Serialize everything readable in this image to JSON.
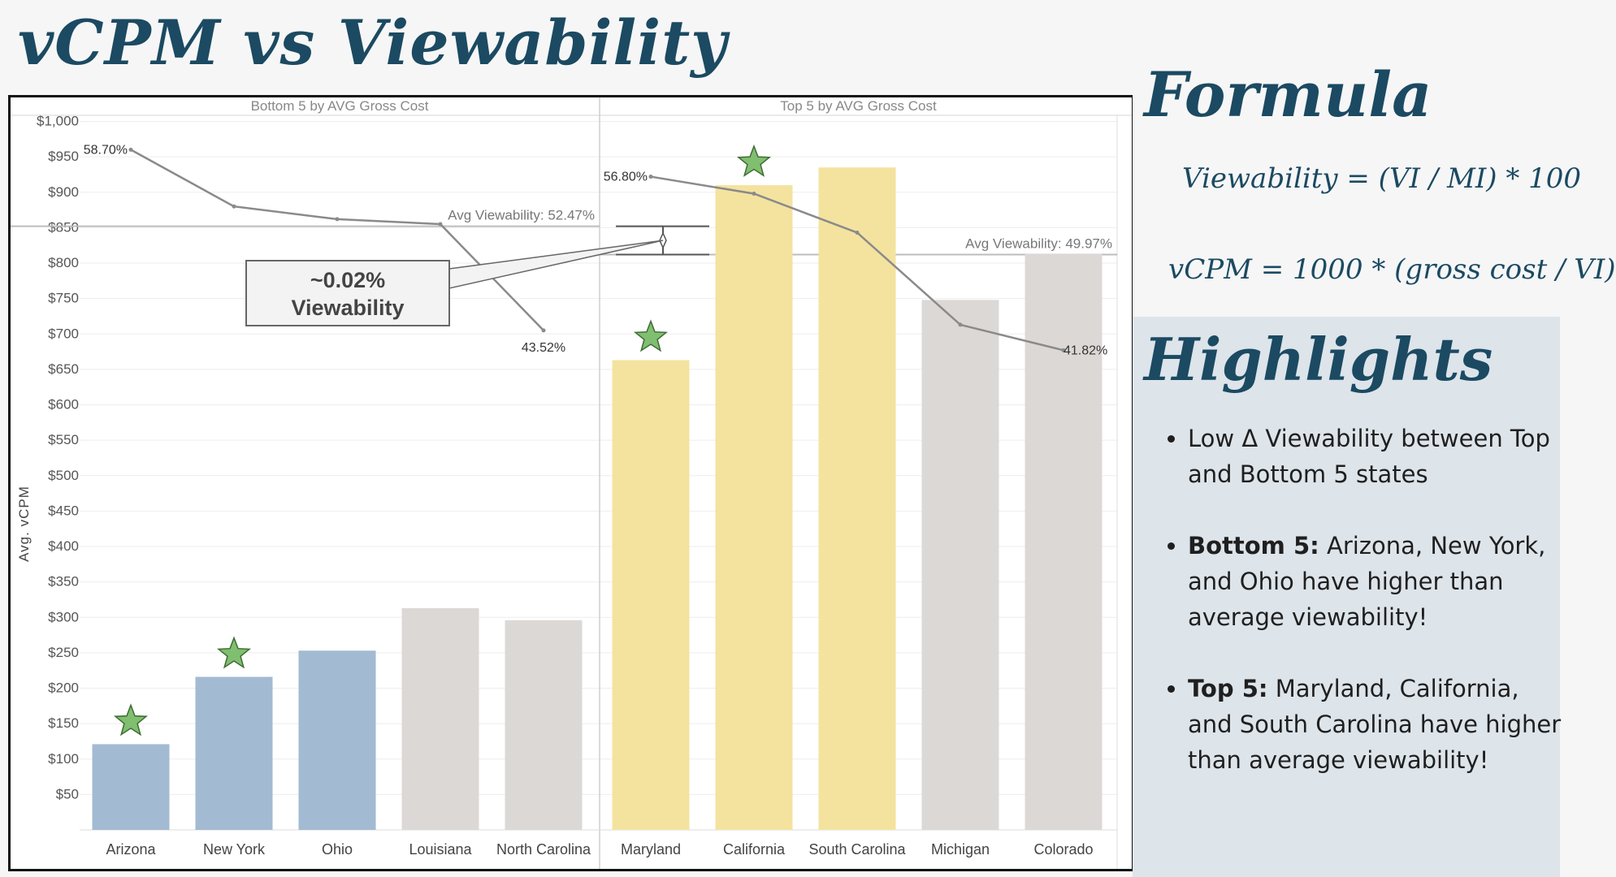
{
  "page": {
    "title": "vCPM vs Viewability"
  },
  "sidebar": {
    "formula_heading": "Formula",
    "formula_1": "Viewability = (VI / MI) * 100",
    "formula_2": "vCPM = 1000 * (gross cost / VI)",
    "highlights_heading": "Highlights",
    "highlights": [
      {
        "bold": "",
        "text": "Low Δ Viewability between Top and Bottom 5 states"
      },
      {
        "bold": "Bottom 5:",
        "text": " Arizona, New York, and Ohio have higher than average viewability!"
      },
      {
        "bold": "Top 5:",
        "text": " Maryland, California, and South Carolina have higher than average viewability!"
      }
    ]
  },
  "chart_data": {
    "type": "bar",
    "ylabel": "Avg. vCPM",
    "ylim": [
      0,
      1000
    ],
    "y_ticks": [
      "$50",
      "$100",
      "$150",
      "$200",
      "$250",
      "$300",
      "$350",
      "$400",
      "$450",
      "$500",
      "$550",
      "$600",
      "$650",
      "$700",
      "$750",
      "$800",
      "$850",
      "$900",
      "$950",
      "$1,000"
    ],
    "panels": [
      {
        "title": "Bottom 5 by AVG Gross Cost",
        "categories": [
          "Arizona",
          "New York",
          "Ohio",
          "Louisiana",
          "North Carolina"
        ],
        "vcpm": [
          121,
          216,
          253,
          313,
          296
        ],
        "bar_colors": [
          "#a3bad3",
          "#a3bad3",
          "#a3bad3",
          "#dcd8d6",
          "#dcd8d6"
        ],
        "starred": [
          true,
          true,
          false,
          false,
          false
        ],
        "viewability_line": [
          960,
          880,
          862,
          855,
          705
        ],
        "viewability_labels": [
          {
            "index": 0,
            "text": "58.70%"
          },
          {
            "index": 4,
            "text": "43.52%"
          }
        ],
        "avg_line": {
          "value": 852,
          "label": "Avg Viewability: 52.47%"
        }
      },
      {
        "title": "Top 5 by AVG Gross Cost",
        "categories": [
          "Maryland",
          "California",
          "South Carolina",
          "Michigan",
          "Colorado"
        ],
        "vcpm": [
          663,
          910,
          935,
          748,
          813
        ],
        "bar_colors": [
          "#f4e39f",
          "#f4e39f",
          "#f4e39f",
          "#dcd8d6",
          "#dcd8d6"
        ],
        "starred": [
          true,
          true,
          false,
          false,
          false
        ],
        "viewability_line": [
          922,
          898,
          843,
          713,
          677
        ],
        "viewability_labels": [
          {
            "index": 0,
            "text": "56.80%"
          },
          {
            "index": 4,
            "text": "41.82%"
          }
        ],
        "avg_line": {
          "value": 812,
          "label": "Avg Viewability: 49.97%"
        }
      }
    ],
    "callout": {
      "line1": "~0.02%",
      "line2": "Viewability"
    },
    "colors": {
      "star": "#7fbf6f",
      "line": "#8a8a8a",
      "avg_line": "#bdbdbd"
    }
  }
}
